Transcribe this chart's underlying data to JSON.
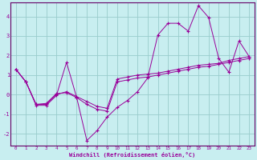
{
  "xlabel": "Windchill (Refroidissement éolien,°C)",
  "background_color": "#c8eef0",
  "grid_color": "#99cccc",
  "line_color": "#990099",
  "spine_color": "#660066",
  "xlim": [
    -0.5,
    23.5
  ],
  "ylim": [
    -2.6,
    4.7
  ],
  "yticks": [
    -2,
    -1,
    0,
    1,
    2,
    3,
    4
  ],
  "xticks": [
    0,
    1,
    2,
    3,
    4,
    5,
    6,
    7,
    8,
    9,
    10,
    11,
    12,
    13,
    14,
    15,
    16,
    17,
    18,
    19,
    20,
    21,
    22,
    23
  ],
  "s1_x": [
    0,
    1,
    2,
    3,
    4,
    5,
    6,
    7,
    8,
    9,
    10,
    11,
    12,
    13,
    14,
    15,
    16,
    17,
    18,
    19,
    20,
    21,
    22,
    23
  ],
  "s1_y": [
    1.3,
    0.65,
    -0.55,
    -0.55,
    -0.05,
    1.65,
    -0.15,
    -2.35,
    -1.85,
    -1.15,
    -0.65,
    -0.3,
    0.15,
    0.85,
    3.05,
    3.65,
    3.65,
    3.25,
    4.55,
    3.95,
    1.85,
    1.15,
    2.75,
    1.95
  ],
  "s2_x": [
    0,
    1,
    2,
    3,
    4,
    5,
    6,
    7,
    8,
    9,
    10,
    11,
    12,
    13,
    14,
    15,
    16,
    17,
    18,
    19,
    20,
    21,
    22,
    23
  ],
  "s2_y": [
    1.3,
    0.65,
    -0.5,
    -0.5,
    0.0,
    0.15,
    -0.1,
    -0.35,
    -0.6,
    -0.7,
    0.8,
    0.9,
    1.0,
    1.05,
    1.1,
    1.2,
    1.3,
    1.4,
    1.5,
    1.55,
    1.6,
    1.75,
    1.85,
    1.95
  ],
  "s3_x": [
    0,
    1,
    2,
    3,
    4,
    5,
    6,
    7,
    8,
    9,
    10,
    11,
    12,
    13,
    14,
    15,
    16,
    17,
    18,
    19,
    20,
    21,
    22,
    23
  ],
  "s3_y": [
    1.3,
    0.65,
    -0.5,
    -0.45,
    0.05,
    0.1,
    -0.15,
    -0.5,
    -0.75,
    -0.85,
    0.65,
    0.75,
    0.85,
    0.9,
    1.0,
    1.1,
    1.2,
    1.3,
    1.4,
    1.45,
    1.55,
    1.65,
    1.75,
    1.85
  ]
}
